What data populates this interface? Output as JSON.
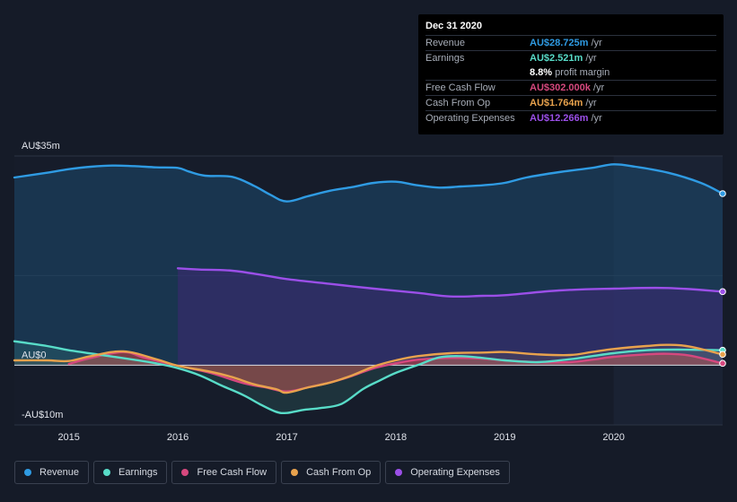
{
  "chart_data": {
    "type": "area",
    "title": "",
    "currency": "AU$",
    "y_axis": {
      "ylim": [
        -10,
        35
      ],
      "tick_labels": [
        {
          "value": 35,
          "label": "AU$35m"
        },
        {
          "value": 0,
          "label": "AU$0"
        },
        {
          "value": -10,
          "label": "-AU$10m"
        }
      ]
    },
    "x_axis": {
      "xlim": [
        2014.5,
        2021.0
      ],
      "ticks": [
        {
          "value": 2015,
          "label": "2015"
        },
        {
          "value": 2016,
          "label": "2016"
        },
        {
          "value": 2017,
          "label": "2017"
        },
        {
          "value": 2018,
          "label": "2018"
        },
        {
          "value": 2019,
          "label": "2019"
        },
        {
          "value": 2020,
          "label": "2020"
        }
      ]
    },
    "highlight_from": 2020.0,
    "series": [
      {
        "name": "Revenue",
        "color": "#2f9be3",
        "points": [
          [
            2014.5,
            31.4
          ],
          [
            2014.8,
            32.2
          ],
          [
            2015.0,
            32.8
          ],
          [
            2015.2,
            33.2
          ],
          [
            2015.4,
            33.4
          ],
          [
            2015.6,
            33.3
          ],
          [
            2015.8,
            33.1
          ],
          [
            2016.0,
            33.0
          ],
          [
            2016.1,
            32.4
          ],
          [
            2016.25,
            31.7
          ],
          [
            2016.5,
            31.5
          ],
          [
            2016.7,
            30.0
          ],
          [
            2016.85,
            28.5
          ],
          [
            2017.0,
            27.4
          ],
          [
            2017.2,
            28.3
          ],
          [
            2017.4,
            29.2
          ],
          [
            2017.6,
            29.8
          ],
          [
            2017.8,
            30.5
          ],
          [
            2018.0,
            30.7
          ],
          [
            2018.2,
            30.1
          ],
          [
            2018.4,
            29.7
          ],
          [
            2018.6,
            29.9
          ],
          [
            2018.8,
            30.1
          ],
          [
            2019.0,
            30.5
          ],
          [
            2019.2,
            31.4
          ],
          [
            2019.5,
            32.3
          ],
          [
            2019.8,
            33.0
          ],
          [
            2020.0,
            33.6
          ],
          [
            2020.2,
            33.2
          ],
          [
            2020.5,
            32.2
          ],
          [
            2020.8,
            30.5
          ],
          [
            2021.0,
            28.7
          ]
        ]
      },
      {
        "name": "Earnings",
        "color": "#58dcc8",
        "points": [
          [
            2014.5,
            4.0
          ],
          [
            2014.8,
            3.2
          ],
          [
            2015.0,
            2.5
          ],
          [
            2015.3,
            1.7
          ],
          [
            2015.6,
            0.9
          ],
          [
            2015.8,
            0.3
          ],
          [
            2016.0,
            -0.5
          ],
          [
            2016.2,
            -1.7
          ],
          [
            2016.4,
            -3.4
          ],
          [
            2016.6,
            -5.0
          ],
          [
            2016.75,
            -6.5
          ],
          [
            2016.9,
            -7.8
          ],
          [
            2017.0,
            -8.0
          ],
          [
            2017.15,
            -7.5
          ],
          [
            2017.3,
            -7.2
          ],
          [
            2017.5,
            -6.5
          ],
          [
            2017.7,
            -4.0
          ],
          [
            2017.85,
            -2.6
          ],
          [
            2018.0,
            -1.3
          ],
          [
            2018.2,
            0.0
          ],
          [
            2018.4,
            1.3
          ],
          [
            2018.6,
            1.5
          ],
          [
            2018.8,
            1.2
          ],
          [
            2019.0,
            0.8
          ],
          [
            2019.3,
            0.5
          ],
          [
            2019.6,
            1.0
          ],
          [
            2019.8,
            1.5
          ],
          [
            2020.0,
            2.0
          ],
          [
            2020.3,
            2.5
          ],
          [
            2020.6,
            2.6
          ],
          [
            2021.0,
            2.5
          ]
        ]
      },
      {
        "name": "Free Cash Flow",
        "color": "#d6487e",
        "points": [
          [
            2015.0,
            0.2
          ],
          [
            2015.2,
            1.2
          ],
          [
            2015.5,
            2.2
          ],
          [
            2015.7,
            1.2
          ],
          [
            2016.0,
            -0.1
          ],
          [
            2016.3,
            -1.3
          ],
          [
            2016.6,
            -3.0
          ],
          [
            2016.8,
            -3.7
          ],
          [
            2017.0,
            -4.4
          ],
          [
            2017.2,
            -3.7
          ],
          [
            2017.4,
            -2.9
          ],
          [
            2017.6,
            -1.8
          ],
          [
            2017.8,
            -0.5
          ],
          [
            2018.0,
            0.3
          ],
          [
            2018.2,
            0.9
          ],
          [
            2018.5,
            1.2
          ],
          [
            2018.8,
            1.1
          ],
          [
            2019.0,
            0.8
          ],
          [
            2019.3,
            0.5
          ],
          [
            2019.6,
            0.5
          ],
          [
            2019.8,
            0.9
          ],
          [
            2020.0,
            1.4
          ],
          [
            2020.3,
            1.8
          ],
          [
            2020.5,
            1.9
          ],
          [
            2020.7,
            1.6
          ],
          [
            2021.0,
            0.3
          ]
        ]
      },
      {
        "name": "Cash From Op",
        "color": "#e8a24d",
        "points": [
          [
            2014.5,
            0.8
          ],
          [
            2014.8,
            0.8
          ],
          [
            2015.0,
            0.7
          ],
          [
            2015.2,
            1.5
          ],
          [
            2015.5,
            2.3
          ],
          [
            2015.8,
            1.0
          ],
          [
            2016.0,
            -0.1
          ],
          [
            2016.3,
            -1.1
          ],
          [
            2016.5,
            -2.0
          ],
          [
            2016.7,
            -3.2
          ],
          [
            2016.9,
            -4.0
          ],
          [
            2017.0,
            -4.6
          ],
          [
            2017.2,
            -3.7
          ],
          [
            2017.4,
            -2.9
          ],
          [
            2017.6,
            -1.7
          ],
          [
            2017.8,
            -0.2
          ],
          [
            2018.0,
            0.8
          ],
          [
            2018.2,
            1.5
          ],
          [
            2018.5,
            2.0
          ],
          [
            2018.8,
            2.1
          ],
          [
            2019.0,
            2.2
          ],
          [
            2019.3,
            1.8
          ],
          [
            2019.6,
            1.7
          ],
          [
            2019.8,
            2.2
          ],
          [
            2020.0,
            2.7
          ],
          [
            2020.3,
            3.2
          ],
          [
            2020.5,
            3.4
          ],
          [
            2020.7,
            3.1
          ],
          [
            2021.0,
            1.8
          ]
        ]
      },
      {
        "name": "Operating Expenses",
        "color": "#9b4fe8",
        "points": [
          [
            2016.0,
            16.2
          ],
          [
            2016.2,
            16.0
          ],
          [
            2016.5,
            15.8
          ],
          [
            2016.8,
            15.0
          ],
          [
            2017.0,
            14.4
          ],
          [
            2017.4,
            13.6
          ],
          [
            2017.8,
            12.8
          ],
          [
            2018.2,
            12.1
          ],
          [
            2018.5,
            11.5
          ],
          [
            2018.8,
            11.6
          ],
          [
            2019.0,
            11.7
          ],
          [
            2019.5,
            12.5
          ],
          [
            2020.0,
            12.8
          ],
          [
            2020.5,
            12.9
          ],
          [
            2021.0,
            12.3
          ]
        ]
      }
    ]
  },
  "tooltip": {
    "date": "Dec 31 2020",
    "rows": [
      {
        "label": "Revenue",
        "value": "AU$28.725m",
        "unit": "/yr",
        "color": "#2f9be3"
      },
      {
        "label": "Earnings",
        "value": "AU$2.521m",
        "unit": "/yr",
        "color": "#58dcc8"
      },
      {
        "label": "",
        "value": "8.8%",
        "unit": "profit margin",
        "color": "#ffffff"
      },
      {
        "label": "Free Cash Flow",
        "value": "AU$302.000k",
        "unit": "/yr",
        "color": "#d6487e"
      },
      {
        "label": "Cash From Op",
        "value": "AU$1.764m",
        "unit": "/yr",
        "color": "#e8a24d"
      },
      {
        "label": "Operating Expenses",
        "value": "AU$12.266m",
        "unit": "/yr",
        "color": "#9b4fe8"
      }
    ]
  },
  "legend": [
    {
      "label": "Revenue",
      "color": "#2f9be3"
    },
    {
      "label": "Earnings",
      "color": "#58dcc8"
    },
    {
      "label": "Free Cash Flow",
      "color": "#d6487e"
    },
    {
      "label": "Cash From Op",
      "color": "#e8a24d"
    },
    {
      "label": "Operating Expenses",
      "color": "#9b4fe8"
    }
  ]
}
